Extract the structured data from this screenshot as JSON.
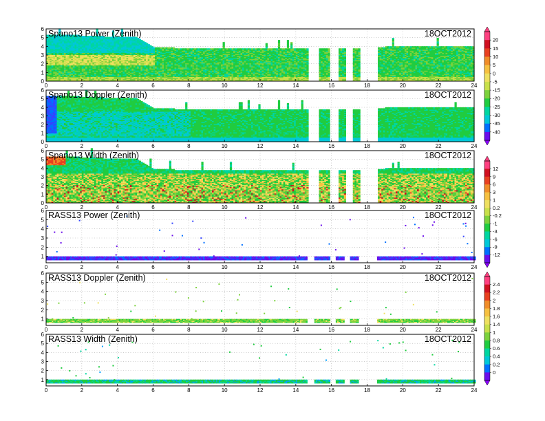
{
  "chart_data": [
    {
      "type": "heatmap",
      "title": "Spano13 Power (Zenith)",
      "date": "18OCT2012",
      "x_ticks": [
        "0",
        "2",
        "4",
        "6",
        "8",
        "10",
        "12",
        "14",
        "16",
        "18",
        "20",
        "22",
        "24"
      ],
      "y_ticks": [
        "0",
        "1",
        "2",
        "3",
        "4",
        "5",
        "6"
      ],
      "xlim": [
        0,
        24
      ],
      "ylim": [
        0,
        6
      ],
      "grid": true,
      "colorbar_ticks": [
        "20",
        "15",
        "10",
        "5",
        "0",
        "-5",
        "-15",
        "-20",
        "-25",
        "-30",
        "-35",
        "-40"
      ],
      "colorbar_range": [
        -45,
        25
      ],
      "data_gaps_hours": [
        [
          14.6,
          15.2
        ],
        [
          15.8,
          16.3
        ],
        [
          16.7,
          17.1
        ],
        [
          17.5,
          18.5
        ]
      ],
      "top_height_km_by_hour": [
        [
          0,
          5.3
        ],
        [
          1,
          5.3
        ],
        [
          3,
          5.1
        ],
        [
          5,
          5.0
        ],
        [
          6,
          3.8
        ],
        [
          10,
          3.7
        ],
        [
          14,
          3.7
        ],
        [
          17,
          3.7
        ],
        [
          19,
          3.9
        ],
        [
          21,
          4.0
        ],
        [
          23,
          4.0
        ],
        [
          24,
          3.9
        ]
      ],
      "dominant_levels": [
        10,
        5,
        -5,
        -15
      ],
      "sparse": false
    },
    {
      "type": "heatmap",
      "title": "Spano13 Doppler (Zenith)",
      "date": "18OCT2012",
      "x_ticks": [
        "0",
        "2",
        "4",
        "6",
        "8",
        "10",
        "12",
        "14",
        "16",
        "18",
        "20",
        "22",
        "24"
      ],
      "y_ticks": [
        "0",
        "1",
        "2",
        "3",
        "4",
        "5",
        "6"
      ],
      "xlim": [
        0,
        24
      ],
      "ylim": [
        0,
        6
      ],
      "grid": true,
      "data_gaps_hours": [
        [
          14.6,
          15.2
        ],
        [
          15.8,
          16.3
        ],
        [
          16.7,
          17.1
        ],
        [
          17.5,
          18.5
        ]
      ],
      "top_height_km_by_hour": [
        [
          0,
          5.3
        ],
        [
          1,
          5.3
        ],
        [
          3,
          5.1
        ],
        [
          5,
          5.0
        ],
        [
          6,
          3.8
        ],
        [
          10,
          3.7
        ],
        [
          14,
          3.7
        ],
        [
          17,
          3.7
        ],
        [
          19,
          3.9
        ],
        [
          21,
          4.0
        ],
        [
          23,
          4.0
        ],
        [
          24,
          3.9
        ]
      ],
      "dominant_levels": [
        -15,
        -20,
        -25
      ],
      "sparse": false
    },
    {
      "type": "heatmap",
      "title": "Spano13 Width (Zenith)",
      "date": "18OCT2012",
      "x_ticks": [
        "0",
        "2",
        "4",
        "6",
        "8",
        "10",
        "12",
        "14",
        "16",
        "18",
        "20",
        "22",
        "24"
      ],
      "y_ticks": [
        "0",
        "1",
        "2",
        "3",
        "4",
        "5",
        "6"
      ],
      "xlim": [
        0,
        24
      ],
      "ylim": [
        0,
        6
      ],
      "grid": true,
      "colorbar_ticks": [
        "12",
        "9",
        "6",
        "3",
        "1",
        "0.2",
        "-0.2",
        "-1",
        "-3",
        "-6",
        "-9",
        "-12"
      ],
      "colorbar_range": [
        -14,
        14
      ],
      "data_gaps_hours": [
        [
          14.6,
          15.2
        ],
        [
          15.8,
          16.3
        ],
        [
          16.7,
          17.1
        ],
        [
          17.5,
          18.5
        ]
      ],
      "top_height_km_by_hour": [
        [
          0,
          5.3
        ],
        [
          1,
          5.3
        ],
        [
          3,
          5.1
        ],
        [
          5,
          5.0
        ],
        [
          6,
          3.8
        ],
        [
          10,
          3.7
        ],
        [
          14,
          3.7
        ],
        [
          17,
          3.7
        ],
        [
          19,
          3.9
        ],
        [
          21,
          4.0
        ],
        [
          23,
          4.0
        ],
        [
          24,
          3.9
        ]
      ],
      "dominant_levels": [
        1,
        3,
        6,
        0.2
      ],
      "sparse": false
    },
    {
      "type": "heatmap",
      "title": "RASS13 Power (Zenith)",
      "date": "18OCT2012",
      "x_ticks": [
        "0",
        "2",
        "4",
        "6",
        "8",
        "10",
        "12",
        "14",
        "16",
        "18",
        "20",
        "22",
        "24"
      ],
      "y_ticks": [
        "1",
        "2",
        "3",
        "4",
        "5",
        "6"
      ],
      "xlim": [
        0,
        24
      ],
      "ylim": [
        0.3,
        6
      ],
      "grid": true,
      "data_gaps_hours": [
        [
          14.6,
          15.0
        ],
        [
          15.9,
          16.2
        ],
        [
          16.7,
          17.0
        ],
        [
          17.5,
          18.5
        ]
      ],
      "band_height_km": [
        0.6,
        0.95
      ],
      "dominant_levels": [
        -9,
        -12
      ],
      "sparse": true
    },
    {
      "type": "heatmap",
      "title": "RASS13 Doppler (Zenith)",
      "date": "18OCT2012",
      "x_ticks": [
        "0",
        "2",
        "4",
        "6",
        "8",
        "10",
        "12",
        "14",
        "16",
        "18",
        "20",
        "22",
        "24"
      ],
      "y_ticks": [
        "1",
        "2",
        "3",
        "4",
        "5",
        "6"
      ],
      "xlim": [
        0,
        24
      ],
      "ylim": [
        0.3,
        6
      ],
      "grid": true,
      "colorbar_ticks": [
        "2.4",
        "2.2",
        "2",
        "1.8",
        "1.6",
        "1.4",
        "1",
        "0.8",
        "0.6",
        "0.4",
        "0.2",
        "0"
      ],
      "colorbar_range": [
        -0.2,
        2.6
      ],
      "data_gaps_hours": [
        [
          14.6,
          15.0
        ],
        [
          15.9,
          16.2
        ],
        [
          16.7,
          17.0
        ],
        [
          17.5,
          18.5
        ]
      ],
      "band_height_km": [
        0.6,
        0.95
      ],
      "dominant_levels": [
        1.2,
        1.0,
        1.4
      ],
      "sparse": true
    },
    {
      "type": "heatmap",
      "title": "RASS13 Width (Zenith)",
      "date": "18OCT2012",
      "x_ticks": [
        "0",
        "2",
        "4",
        "6",
        "8",
        "10",
        "12",
        "14",
        "16",
        "18",
        "20",
        "22",
        "24"
      ],
      "y_ticks": [
        "1",
        "2",
        "3",
        "4",
        "5",
        "6"
      ],
      "xlim": [
        0,
        24
      ],
      "ylim": [
        0.3,
        6
      ],
      "grid": true,
      "data_gaps_hours": [
        [
          14.6,
          15.0
        ],
        [
          15.9,
          16.2
        ],
        [
          16.7,
          17.0
        ],
        [
          17.5,
          18.5
        ]
      ],
      "band_height_km": [
        0.6,
        0.95
      ],
      "dominant_levels": [
        1.0,
        0.6,
        0.8
      ],
      "sparse": true
    }
  ],
  "colors": {
    "palette": [
      "#8B00FF",
      "#6A0DEB",
      "#3344FF",
      "#0070FF",
      "#00A0FF",
      "#00C8D8",
      "#00D6A0",
      "#20CC40",
      "#7CD23C",
      "#C8E04A",
      "#EEE060",
      "#F6C040",
      "#F08C28",
      "#E84020",
      "#D01020",
      "#FF4080"
    ]
  }
}
